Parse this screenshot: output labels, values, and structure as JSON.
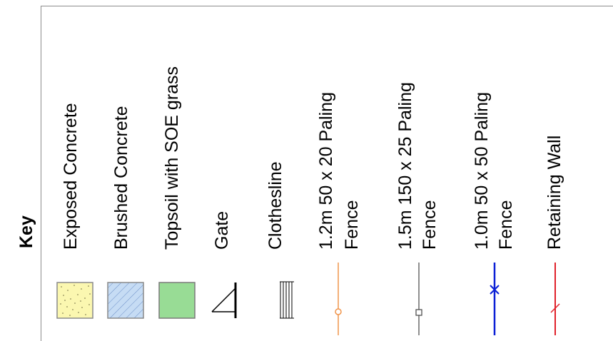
{
  "key_title": "Key",
  "items": [
    {
      "label": "Exposed Concrete",
      "symbol": "dotted-yellow-swatch",
      "color": "#fbf7b0"
    },
    {
      "label": "Brushed Concrete",
      "symbol": "hatched-blue-swatch",
      "color": "#c6dcf4"
    },
    {
      "label": "Topsoil with SOE grass",
      "symbol": "green-swatch",
      "color": "#98dc95"
    },
    {
      "label": "Gate",
      "symbol": "gate-symbol"
    },
    {
      "label": "Clothesline",
      "symbol": "clothesline-symbol"
    },
    {
      "label_line1": "1.2m 50 x 20 Paling",
      "label_line2": "Fence",
      "symbol": "fence-circle-line",
      "color": "#f0944a"
    },
    {
      "label_line1": "1.5m 150 x 25 Paling",
      "label_line2": "Fence",
      "symbol": "fence-square-line",
      "color": "#444444"
    },
    {
      "label_line1": "1.0m 50 x 50 Paling",
      "label_line2": "Fence",
      "symbol": "fence-cross-line",
      "color": "#0a1fd6"
    },
    {
      "label": "Retaining Wall",
      "symbol": "retaining-wall-line",
      "color": "#e0212a"
    }
  ]
}
